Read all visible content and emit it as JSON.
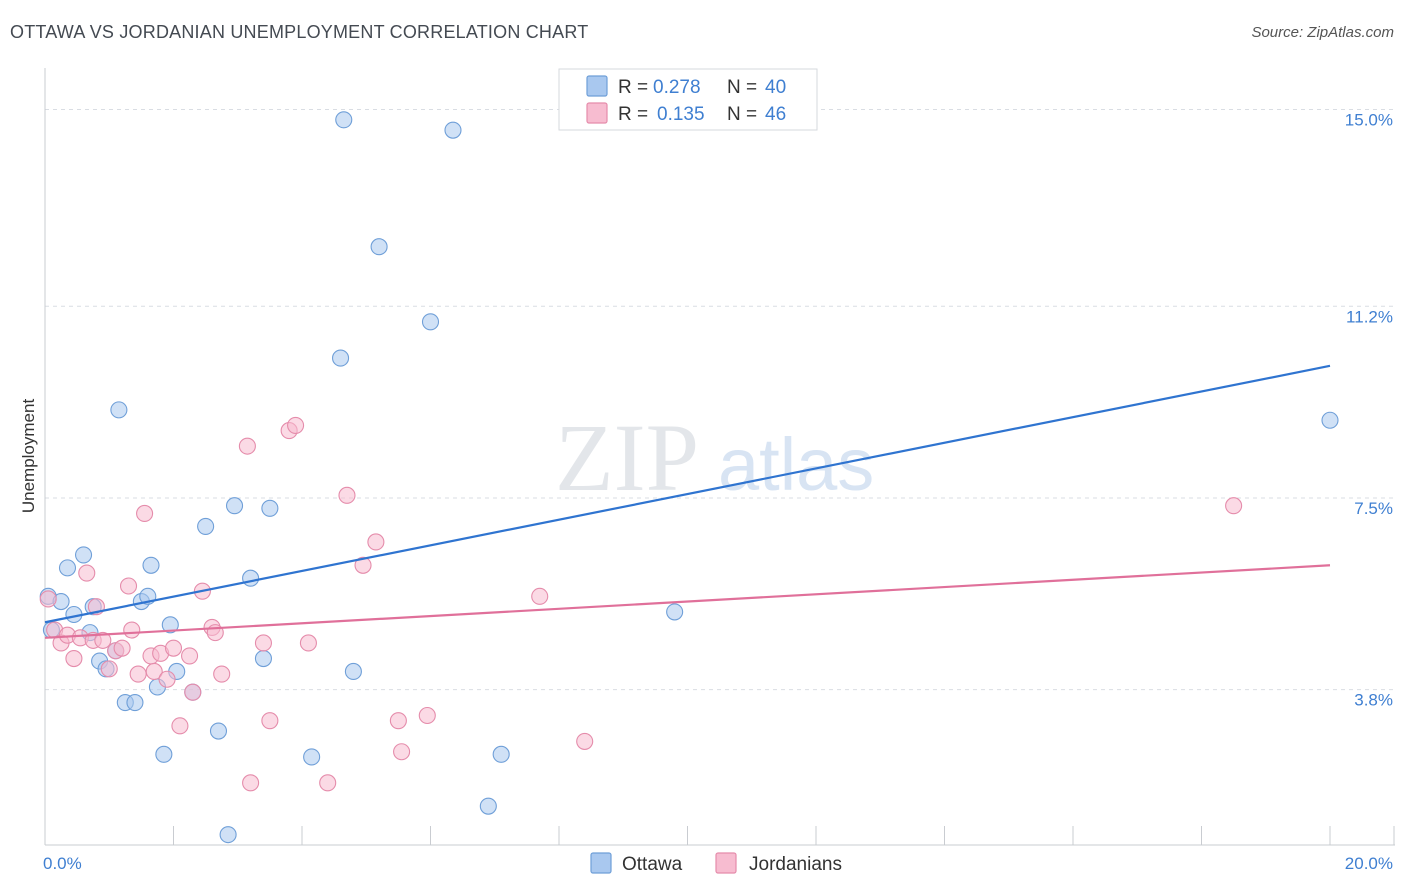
{
  "title": "OTTAWA VS JORDANIAN UNEMPLOYMENT CORRELATION CHART",
  "source": "Source: ZipAtlas.com",
  "watermark": {
    "zip": "ZIP",
    "atlas": "atlas"
  },
  "colors": {
    "ottawa_fill": "#a9c8ef",
    "ottawa_stroke": "#6f9fd8",
    "ottawa_line": "#2f74d0",
    "jordanian_fill": "#f7bcd0",
    "jordanian_stroke": "#e58cab",
    "jordanian_line": "#e0709a",
    "tick": "#3f7fd1",
    "grid": "#d9dde3"
  },
  "legend": {
    "r_label": "R =",
    "n_label": "N =",
    "ottawa_r": "0.278",
    "ottawa_n": "40",
    "jordanian_r": "0.135",
    "jordanian_n": "46"
  },
  "chart_data": {
    "type": "scatter",
    "title": "OTTAWA VS JORDANIAN UNEMPLOYMENT CORRELATION CHART",
    "xlabel": "",
    "ylabel": "Unemployment",
    "xlim": [
      0,
      20
    ],
    "ylim": [
      0.8,
      15.8
    ],
    "x_tick_labels": {
      "min": "0.0%",
      "max": "20.0%"
    },
    "y_ticks": [
      {
        "value": 3.8,
        "label": "3.8%"
      },
      {
        "value": 7.5,
        "label": "7.5%"
      },
      {
        "value": 11.2,
        "label": "11.2%"
      },
      {
        "value": 15.0,
        "label": "15.0%"
      }
    ],
    "grid": true,
    "series": [
      {
        "name": "Ottawa",
        "r": 0.278,
        "n": 40,
        "trend": {
          "x": [
            0,
            20
          ],
          "y": [
            5.1,
            10.05
          ]
        },
        "points": [
          [
            0.05,
            5.6
          ],
          [
            0.25,
            5.5
          ],
          [
            0.35,
            6.15
          ],
          [
            0.45,
            5.25
          ],
          [
            0.6,
            6.4
          ],
          [
            0.7,
            4.9
          ],
          [
            0.75,
            5.4
          ],
          [
            0.85,
            4.35
          ],
          [
            0.95,
            4.2
          ],
          [
            1.1,
            4.55
          ],
          [
            1.15,
            9.2
          ],
          [
            1.25,
            3.55
          ],
          [
            1.4,
            3.55
          ],
          [
            1.5,
            5.5
          ],
          [
            1.6,
            5.6
          ],
          [
            1.65,
            6.2
          ],
          [
            1.75,
            3.85
          ],
          [
            1.85,
            2.55
          ],
          [
            1.95,
            5.05
          ],
          [
            2.05,
            4.15
          ],
          [
            2.3,
            3.75
          ],
          [
            2.5,
            6.95
          ],
          [
            2.7,
            3.0
          ],
          [
            2.85,
            1.0
          ],
          [
            2.95,
            7.35
          ],
          [
            3.2,
            5.95
          ],
          [
            3.4,
            4.4
          ],
          [
            3.5,
            7.3
          ],
          [
            4.15,
            2.5
          ],
          [
            4.6,
            10.2
          ],
          [
            4.65,
            14.8
          ],
          [
            4.8,
            4.15
          ],
          [
            5.2,
            12.35
          ],
          [
            6.0,
            10.9
          ],
          [
            6.35,
            14.6
          ],
          [
            6.9,
            1.55
          ],
          [
            7.1,
            2.55
          ],
          [
            9.8,
            5.3
          ],
          [
            20.0,
            9.0
          ],
          [
            0.1,
            4.95
          ]
        ]
      },
      {
        "name": "Jordanians",
        "r": 0.135,
        "n": 46,
        "trend": {
          "x": [
            0,
            20
          ],
          "y": [
            4.8,
            6.2
          ]
        },
        "points": [
          [
            0.05,
            5.55
          ],
          [
            0.15,
            4.95
          ],
          [
            0.25,
            4.7
          ],
          [
            0.35,
            4.85
          ],
          [
            0.45,
            4.4
          ],
          [
            0.55,
            4.8
          ],
          [
            0.65,
            6.05
          ],
          [
            0.75,
            4.75
          ],
          [
            0.8,
            5.4
          ],
          [
            0.9,
            4.75
          ],
          [
            1.0,
            4.2
          ],
          [
            1.1,
            4.55
          ],
          [
            1.2,
            4.6
          ],
          [
            1.3,
            5.8
          ],
          [
            1.35,
            4.95
          ],
          [
            1.45,
            4.1
          ],
          [
            1.55,
            7.2
          ],
          [
            1.65,
            4.45
          ],
          [
            1.7,
            4.15
          ],
          [
            1.8,
            4.5
          ],
          [
            1.9,
            4.0
          ],
          [
            2.0,
            4.6
          ],
          [
            2.1,
            3.1
          ],
          [
            2.25,
            4.45
          ],
          [
            2.3,
            3.75
          ],
          [
            2.45,
            5.7
          ],
          [
            2.6,
            5.0
          ],
          [
            2.65,
            4.9
          ],
          [
            2.75,
            4.1
          ],
          [
            3.15,
            8.5
          ],
          [
            3.2,
            2.0
          ],
          [
            3.4,
            4.7
          ],
          [
            3.5,
            3.2
          ],
          [
            3.8,
            8.8
          ],
          [
            3.9,
            8.9
          ],
          [
            4.1,
            4.7
          ],
          [
            4.4,
            2.0
          ],
          [
            4.7,
            7.55
          ],
          [
            4.95,
            6.2
          ],
          [
            5.15,
            6.65
          ],
          [
            5.5,
            3.2
          ],
          [
            5.55,
            2.6
          ],
          [
            5.95,
            3.3
          ],
          [
            7.7,
            5.6
          ],
          [
            8.4,
            2.8
          ],
          [
            18.5,
            7.35
          ]
        ]
      }
    ]
  }
}
